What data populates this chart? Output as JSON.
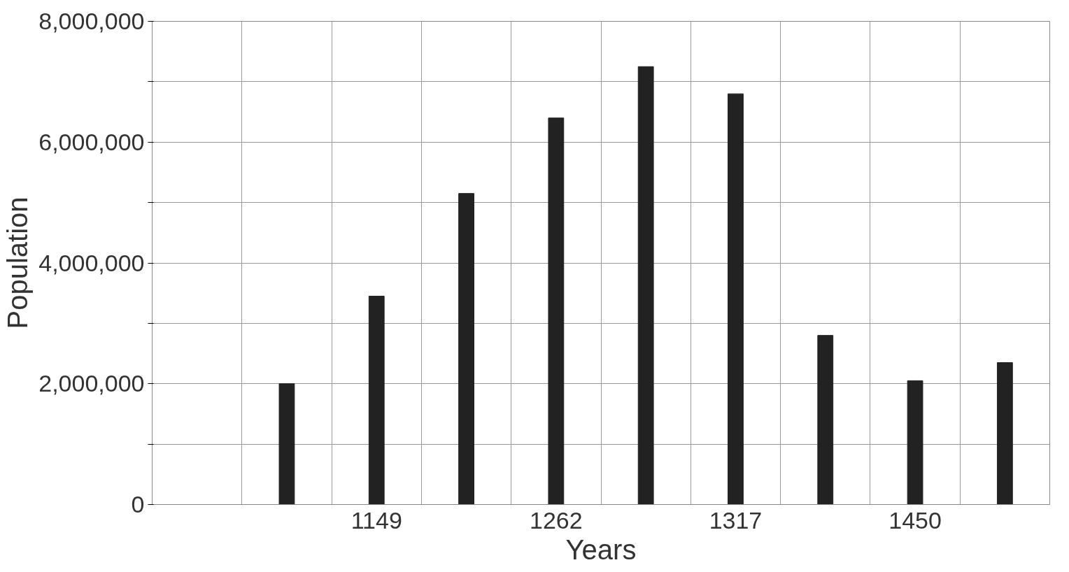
{
  "chart_data": {
    "type": "bar",
    "xlabel": "Years",
    "ylabel": "Population",
    "categories": [
      null,
      null,
      "1149",
      null,
      "1262",
      null,
      "1317",
      null,
      "1450",
      null
    ],
    "values": [
      null,
      2000000,
      3450000,
      5150000,
      6400000,
      7250000,
      6800000,
      2800000,
      2050000,
      2350000
    ],
    "color": "#222222",
    "ylim": [
      0,
      8000000
    ],
    "yticks": [
      0,
      {
        "value": 1000000,
        "label": null
      },
      {
        "value": 2000000,
        "label": "2,000,000"
      },
      {
        "value": 3000000,
        "label": null
      },
      {
        "value": 4000000,
        "label": "4,000,000"
      },
      {
        "value": 5000000,
        "label": null
      },
      {
        "value": 6000000,
        "label": "6,000,000"
      },
      {
        "value": 7000000,
        "label": null
      },
      {
        "value": 8000000,
        "label": "8,000,000"
      }
    ],
    "grid": true
  }
}
